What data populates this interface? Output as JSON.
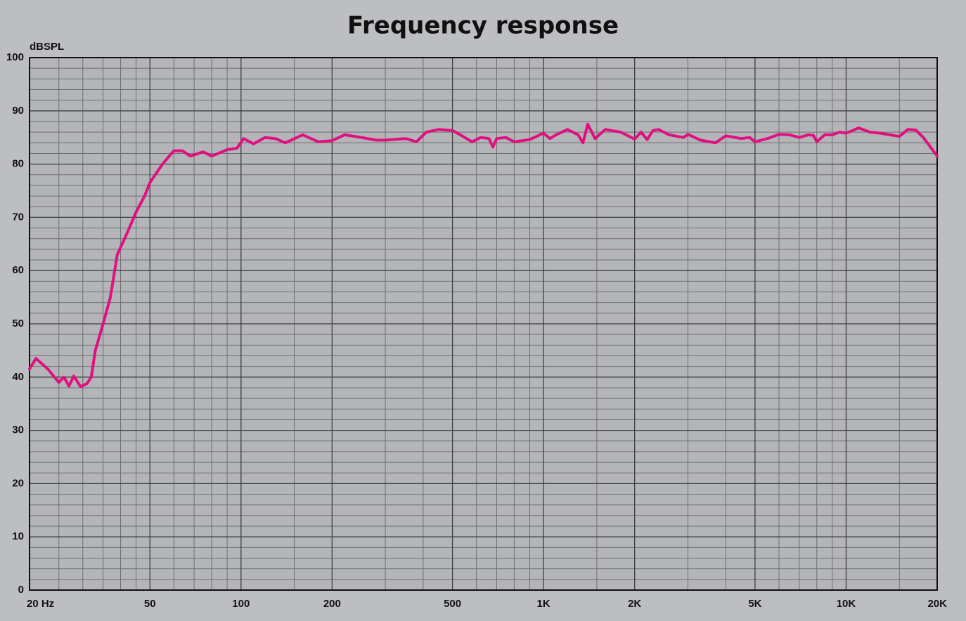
{
  "chart_data": {
    "type": "line",
    "title": "Frequency response",
    "y_label": "dBSPL",
    "xscale": "log",
    "grid": true,
    "color": "#e0117f",
    "xlim": [
      20,
      20000
    ],
    "ylim": [
      0,
      100
    ],
    "xticks": [
      {
        "value": 20,
        "label": "20 Hz"
      },
      50,
      100,
      200,
      500,
      {
        "value": 1000,
        "label": "1K"
      },
      {
        "value": 2000,
        "label": "2K"
      },
      {
        "value": 5000,
        "label": "5K"
      },
      {
        "value": 10000,
        "label": "10K"
      },
      {
        "value": 20000,
        "label": "20K"
      }
    ],
    "yticks": [
      0,
      10,
      20,
      30,
      40,
      50,
      60,
      70,
      80,
      90,
      100
    ],
    "xminor": [
      25,
      30,
      35,
      40,
      45,
      60,
      70,
      80,
      90,
      150,
      300,
      400,
      600,
      700,
      800,
      900,
      1500,
      3000,
      4000,
      6000,
      7000,
      8000,
      9000,
      15000
    ],
    "yminor": [
      2,
      4,
      6,
      8,
      12,
      14,
      16,
      18,
      22,
      24,
      26,
      28,
      32,
      34,
      36,
      38,
      42,
      44,
      46,
      48,
      52,
      54,
      56,
      58,
      62,
      64,
      66,
      68,
      72,
      74,
      76,
      78,
      82,
      84,
      86,
      88,
      92,
      94,
      96,
      98
    ],
    "x": [
      20,
      21,
      23,
      25,
      26,
      27,
      28,
      29.5,
      31,
      32,
      33,
      35,
      37,
      39,
      42,
      45,
      48,
      50,
      55,
      60,
      64,
      68,
      75,
      80,
      90,
      97,
      102,
      110,
      120,
      130,
      140,
      160,
      180,
      200,
      220,
      250,
      280,
      300,
      350,
      380,
      410,
      450,
      500,
      530,
      580,
      620,
      660,
      680,
      700,
      750,
      800,
      900,
      1000,
      1050,
      1100,
      1200,
      1300,
      1350,
      1400,
      1480,
      1600,
      1800,
      2000,
      2100,
      2200,
      2300,
      2400,
      2600,
      2900,
      3000,
      3300,
      3700,
      4000,
      4500,
      4800,
      5000,
      5500,
      6000,
      6500,
      7000,
      7500,
      7800,
      8000,
      8500,
      9000,
      9500,
      10000,
      10500,
      11000,
      12000,
      13000,
      15000,
      16000,
      17000,
      18000,
      20000
    ],
    "values": [
      41.5,
      43.5,
      41.5,
      39,
      40,
      38.3,
      40.2,
      38.2,
      38.8,
      40,
      45,
      50,
      55,
      63,
      67,
      71,
      74,
      76.5,
      80,
      82.5,
      82.5,
      81.5,
      82.3,
      81.5,
      82.7,
      83,
      84.8,
      83.8,
      85,
      84.8,
      84,
      85.5,
      84.2,
      84.4,
      85.5,
      85,
      84.5,
      84.5,
      84.8,
      84.2,
      86,
      86.5,
      86.3,
      85.5,
      84.2,
      85,
      84.8,
      83.2,
      84.8,
      85,
      84.2,
      84.6,
      85.8,
      84.8,
      85.5,
      86.5,
      85.5,
      84,
      87.5,
      84.8,
      86.5,
      86,
      84.7,
      86,
      84.6,
      86.3,
      86.5,
      85.5,
      85,
      85.6,
      84.5,
      84,
      85.3,
      84.8,
      85,
      84.2,
      84.8,
      85.6,
      85.5,
      85,
      85.5,
      85.4,
      84.2,
      85.5,
      85.5,
      86,
      85.8,
      86.3,
      86.8,
      86,
      85.8,
      85.2,
      86.5,
      86.4,
      85,
      81.5
    ]
  }
}
